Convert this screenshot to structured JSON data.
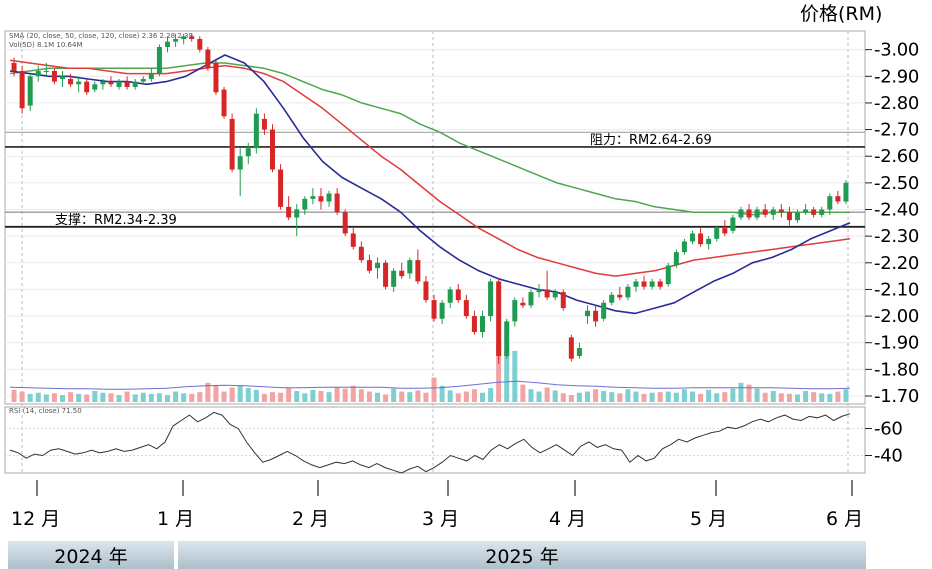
{
  "chart_data": {
    "type": "candlestick",
    "y_axis_title": "价格(RM)",
    "price_ylim": [
      1.67,
      3.07
    ],
    "price_ticks": [
      "3.00",
      "2.90",
      "2.80",
      "2.70",
      "2.60",
      "2.50",
      "2.40",
      "2.30",
      "2.20",
      "2.10",
      "2.00",
      "1.90",
      "1.80",
      "1.70"
    ],
    "rsi_ticks": [
      "60",
      "40"
    ],
    "x_ticks": [
      "12 月",
      "1 月",
      "2 月",
      "3 月",
      "4 月",
      "5 月",
      "6 月"
    ],
    "years": [
      "2024 年",
      "2025 年"
    ],
    "legend": {
      "ma_line": "SMA (20, close, 50, close, 120, close)  2.36  2.28  2.39",
      "vol_line": "Vol(5D)  8.1M  10.64M",
      "rsi_line": "RSI (14, close)  71.50"
    },
    "levels": {
      "resistance": {
        "label": "阻力：RM2.64-2.69",
        "low": 2.635,
        "high": 2.69
      },
      "support": {
        "label": "支撑：RM2.34-2.39",
        "low": 2.335,
        "high": 2.39
      }
    },
    "candles": [
      [
        2.95,
        2.97,
        2.9,
        2.92
      ],
      [
        2.92,
        2.94,
        2.76,
        2.78
      ],
      [
        2.79,
        2.91,
        2.77,
        2.9
      ],
      [
        2.9,
        2.94,
        2.88,
        2.92
      ],
      [
        2.92,
        2.95,
        2.9,
        2.92
      ],
      [
        2.92,
        2.93,
        2.87,
        2.88
      ],
      [
        2.89,
        2.92,
        2.86,
        2.9
      ],
      [
        2.89,
        2.91,
        2.86,
        2.87
      ],
      [
        2.87,
        2.9,
        2.84,
        2.88
      ],
      [
        2.88,
        2.89,
        2.83,
        2.84
      ],
      [
        2.85,
        2.88,
        2.84,
        2.87
      ],
      [
        2.87,
        2.89,
        2.85,
        2.88
      ],
      [
        2.88,
        2.9,
        2.86,
        2.87
      ],
      [
        2.86,
        2.89,
        2.85,
        2.88
      ],
      [
        2.88,
        2.9,
        2.85,
        2.86
      ],
      [
        2.86,
        2.89,
        2.85,
        2.88
      ],
      [
        2.88,
        2.9,
        2.87,
        2.89
      ],
      [
        2.89,
        2.93,
        2.88,
        2.91
      ],
      [
        2.91,
        3.02,
        2.9,
        3.01
      ],
      [
        3.01,
        3.05,
        2.99,
        3.03
      ],
      [
        3.03,
        3.06,
        3.01,
        3.04
      ],
      [
        3.04,
        3.06,
        3.02,
        3.05
      ],
      [
        3.05,
        3.06,
        3.03,
        3.04
      ],
      [
        3.04,
        3.05,
        2.99,
        3.0
      ],
      [
        3.0,
        3.01,
        2.92,
        2.93
      ],
      [
        2.95,
        2.96,
        2.83,
        2.84
      ],
      [
        2.85,
        2.86,
        2.74,
        2.75
      ],
      [
        2.74,
        2.76,
        2.54,
        2.55
      ],
      [
        2.55,
        2.63,
        2.45,
        2.6
      ],
      [
        2.6,
        2.65,
        2.57,
        2.63
      ],
      [
        2.63,
        2.78,
        2.61,
        2.76
      ],
      [
        2.74,
        2.76,
        2.68,
        2.7
      ],
      [
        2.7,
        2.72,
        2.54,
        2.55
      ],
      [
        2.55,
        2.57,
        2.4,
        2.41
      ],
      [
        2.41,
        2.45,
        2.36,
        2.37
      ],
      [
        2.37,
        2.42,
        2.3,
        2.4
      ],
      [
        2.4,
        2.45,
        2.38,
        2.44
      ],
      [
        2.44,
        2.48,
        2.42,
        2.45
      ],
      [
        2.45,
        2.48,
        2.4,
        2.43
      ],
      [
        2.43,
        2.47,
        2.41,
        2.46
      ],
      [
        2.46,
        2.48,
        2.38,
        2.39
      ],
      [
        2.39,
        2.4,
        2.3,
        2.31
      ],
      [
        2.31,
        2.33,
        2.25,
        2.26
      ],
      [
        2.26,
        2.28,
        2.2,
        2.21
      ],
      [
        2.21,
        2.23,
        2.16,
        2.17
      ],
      [
        2.18,
        2.22,
        2.14,
        2.2
      ],
      [
        2.2,
        2.21,
        2.1,
        2.11
      ],
      [
        2.11,
        2.18,
        2.09,
        2.17
      ],
      [
        2.17,
        2.2,
        2.14,
        2.15
      ],
      [
        2.16,
        2.22,
        2.14,
        2.21
      ],
      [
        2.21,
        2.25,
        2.12,
        2.13
      ],
      [
        2.13,
        2.15,
        2.05,
        2.06
      ],
      [
        2.06,
        2.08,
        1.98,
        1.99
      ],
      [
        1.99,
        2.06,
        1.97,
        2.05
      ],
      [
        2.05,
        2.11,
        2.03,
        2.1
      ],
      [
        2.1,
        2.12,
        2.05,
        2.06
      ],
      [
        2.06,
        2.08,
        1.99,
        2.0
      ],
      [
        2.0,
        2.02,
        1.93,
        1.94
      ],
      [
        1.94,
        2.02,
        1.92,
        2.0
      ],
      [
        2.0,
        2.14,
        1.98,
        2.13
      ],
      [
        2.13,
        2.14,
        1.82,
        1.85
      ],
      [
        1.85,
        1.99,
        1.84,
        1.98
      ],
      [
        1.98,
        2.07,
        1.96,
        2.06
      ],
      [
        2.05,
        2.07,
        2.03,
        2.04
      ],
      [
        2.04,
        2.1,
        2.03,
        2.09
      ],
      [
        2.09,
        2.12,
        2.07,
        2.1
      ],
      [
        2.1,
        2.17,
        2.06,
        2.07
      ],
      [
        2.07,
        2.1,
        2.06,
        2.09
      ],
      [
        2.09,
        2.1,
        2.02,
        2.03
      ],
      [
        1.92,
        1.93,
        1.83,
        1.84
      ],
      [
        1.85,
        1.9,
        1.84,
        1.88
      ],
      [
        2.0,
        2.04,
        1.97,
        2.02
      ],
      [
        2.02,
        2.04,
        1.96,
        1.98
      ],
      [
        1.99,
        2.06,
        1.98,
        2.05
      ],
      [
        2.05,
        2.09,
        2.04,
        2.08
      ],
      [
        2.08,
        2.11,
        2.06,
        2.07
      ],
      [
        2.07,
        2.12,
        2.06,
        2.11
      ],
      [
        2.11,
        2.14,
        2.09,
        2.13
      ],
      [
        2.13,
        2.15,
        2.1,
        2.11
      ],
      [
        2.11,
        2.14,
        2.1,
        2.13
      ],
      [
        2.13,
        2.14,
        2.1,
        2.11
      ],
      [
        2.12,
        2.2,
        2.11,
        2.19
      ],
      [
        2.19,
        2.25,
        2.18,
        2.24
      ],
      [
        2.24,
        2.29,
        2.23,
        2.28
      ],
      [
        2.28,
        2.32,
        2.27,
        2.31
      ],
      [
        2.31,
        2.33,
        2.26,
        2.27
      ],
      [
        2.27,
        2.3,
        2.25,
        2.29
      ],
      [
        2.29,
        2.34,
        2.28,
        2.33
      ],
      [
        2.33,
        2.36,
        2.3,
        2.31
      ],
      [
        2.32,
        2.38,
        2.31,
        2.37
      ],
      [
        2.37,
        2.41,
        2.36,
        2.4
      ],
      [
        2.4,
        2.42,
        2.36,
        2.37
      ],
      [
        2.37,
        2.41,
        2.36,
        2.4
      ],
      [
        2.4,
        2.42,
        2.37,
        2.38
      ],
      [
        2.38,
        2.41,
        2.36,
        2.4
      ],
      [
        2.4,
        2.42,
        2.37,
        2.39
      ],
      [
        2.39,
        2.41,
        2.34,
        2.36
      ],
      [
        2.36,
        2.4,
        2.35,
        2.39
      ],
      [
        2.39,
        2.42,
        2.38,
        2.4
      ],
      [
        2.4,
        2.41,
        2.37,
        2.38
      ],
      [
        2.38,
        2.41,
        2.37,
        2.4
      ],
      [
        2.4,
        2.46,
        2.38,
        2.45
      ],
      [
        2.45,
        2.47,
        2.42,
        2.43
      ],
      [
        2.43,
        2.51,
        2.42,
        2.5
      ]
    ],
    "sma20": [
      2.92,
      2.91,
      2.9,
      2.9,
      2.89,
      2.88,
      2.88,
      2.87,
      2.88,
      2.9,
      2.94,
      2.98,
      2.95,
      2.88,
      2.78,
      2.67,
      2.58,
      2.52,
      2.48,
      2.44,
      2.39,
      2.32,
      2.26,
      2.21,
      2.17,
      2.14,
      2.12,
      2.1,
      2.09,
      2.06,
      2.04,
      2.02,
      2.01,
      2.03,
      2.05,
      2.09,
      2.13,
      2.16,
      2.2,
      2.22,
      2.25,
      2.29,
      2.32,
      2.35
    ],
    "sma50": [
      2.96,
      2.95,
      2.94,
      2.93,
      2.93,
      2.92,
      2.91,
      2.91,
      2.91,
      2.92,
      2.93,
      2.94,
      2.93,
      2.91,
      2.88,
      2.83,
      2.78,
      2.72,
      2.66,
      2.6,
      2.55,
      2.49,
      2.43,
      2.38,
      2.33,
      2.29,
      2.25,
      2.22,
      2.2,
      2.18,
      2.16,
      2.15,
      2.16,
      2.17,
      2.19,
      2.21,
      2.22,
      2.23,
      2.24,
      2.25,
      2.26,
      2.27,
      2.28,
      2.29
    ],
    "sma120": [
      2.91,
      2.92,
      2.93,
      2.93,
      2.93,
      2.93,
      2.93,
      2.93,
      2.93,
      2.94,
      2.95,
      2.95,
      2.94,
      2.93,
      2.91,
      2.88,
      2.85,
      2.83,
      2.8,
      2.78,
      2.76,
      2.72,
      2.69,
      2.65,
      2.62,
      2.59,
      2.56,
      2.53,
      2.5,
      2.48,
      2.46,
      2.44,
      2.43,
      2.41,
      2.4,
      2.39,
      2.39,
      2.39,
      2.38,
      2.39,
      2.39,
      2.39,
      2.39,
      2.39
    ],
    "volume": [
      0.21,
      0.18,
      0.14,
      0.16,
      0.13,
      0.15,
      0.12,
      0.17,
      0.14,
      0.13,
      0.19,
      0.16,
      0.15,
      0.12,
      0.18,
      0.13,
      0.16,
      0.14,
      0.15,
      0.12,
      0.18,
      0.15,
      0.14,
      0.17,
      0.33,
      0.29,
      0.18,
      0.25,
      0.28,
      0.24,
      0.21,
      0.14,
      0.17,
      0.16,
      0.24,
      0.19,
      0.15,
      0.21,
      0.19,
      0.17,
      0.25,
      0.23,
      0.28,
      0.22,
      0.18,
      0.16,
      0.13,
      0.23,
      0.18,
      0.17,
      0.2,
      0.16,
      0.42,
      0.28,
      0.2,
      0.15,
      0.18,
      0.22,
      0.16,
      0.24,
      1.0,
      0.9,
      0.88,
      0.3,
      0.22,
      0.18,
      0.25,
      0.2,
      0.15,
      0.12,
      0.16,
      0.18,
      0.22,
      0.19,
      0.17,
      0.15,
      0.22,
      0.18,
      0.14,
      0.16,
      0.17,
      0.18,
      0.16,
      0.22,
      0.18,
      0.14,
      0.21,
      0.15,
      0.17,
      0.23,
      0.33,
      0.3,
      0.23,
      0.16,
      0.19,
      0.15,
      0.14,
      0.13,
      0.19,
      0.17,
      0.15,
      0.14,
      0.18,
      0.22
    ],
    "volume_ma": [
      0.3,
      0.29,
      0.28,
      0.27,
      0.27,
      0.26,
      0.26,
      0.27,
      0.28,
      0.31,
      0.33,
      0.34,
      0.33,
      0.31,
      0.29,
      0.29,
      0.3,
      0.3,
      0.3,
      0.3,
      0.28,
      0.28,
      0.29,
      0.32,
      0.36,
      0.4,
      0.42,
      0.39,
      0.35,
      0.33,
      0.32,
      0.3,
      0.29,
      0.28,
      0.28,
      0.29,
      0.29,
      0.29,
      0.29,
      0.29,
      0.28,
      0.27,
      0.27,
      0.28
    ],
    "rsi": [
      44,
      42,
      38,
      41,
      40,
      44,
      45,
      43,
      41,
      42,
      44,
      42,
      43,
      45,
      43,
      44,
      46,
      48,
      45,
      50,
      62,
      66,
      70,
      65,
      68,
      72,
      70,
      63,
      60,
      50,
      42,
      35,
      37,
      40,
      43,
      40,
      36,
      33,
      31,
      33,
      35,
      34,
      36,
      33,
      31,
      34,
      31,
      29,
      27,
      30,
      32,
      28,
      31,
      35,
      40,
      38,
      36,
      40,
      37,
      44,
      48,
      45,
      49,
      52,
      46,
      42,
      45,
      48,
      44,
      40,
      47,
      50,
      46,
      48,
      45,
      44,
      35,
      40,
      36,
      38,
      45,
      48,
      52,
      50,
      53,
      55,
      57,
      58,
      61,
      60,
      62,
      65,
      67,
      65,
      68,
      70,
      67,
      66,
      69,
      68,
      70,
      66,
      69,
      71
    ]
  }
}
